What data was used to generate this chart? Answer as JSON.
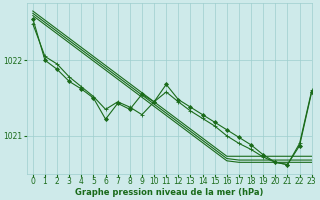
{
  "title": "Graphe pression niveau de la mer (hPa)",
  "background_color": "#ceeaea",
  "grid_color": "#9ecece",
  "line_color": "#1a6b1a",
  "ylim": [
    1020.5,
    1022.75
  ],
  "xlim": [
    -0.5,
    23
  ],
  "yticks": [
    1021,
    1022
  ],
  "xticks": [
    0,
    1,
    2,
    3,
    4,
    5,
    6,
    7,
    8,
    9,
    10,
    11,
    12,
    13,
    14,
    15,
    16,
    17,
    18,
    19,
    20,
    21,
    22,
    23
  ],
  "series": [
    {
      "x": [
        0,
        1,
        2,
        3,
        4,
        5,
        6,
        7,
        8,
        9,
        10,
        11,
        12,
        13,
        14,
        15,
        16,
        17,
        18,
        19,
        20,
        21,
        22,
        23
      ],
      "y": [
        1022.65,
        1022.53,
        1022.41,
        1022.29,
        1022.17,
        1022.05,
        1021.93,
        1021.81,
        1021.69,
        1021.57,
        1021.45,
        1021.33,
        1021.21,
        1021.09,
        1020.97,
        1020.85,
        1020.73,
        1020.73,
        1020.73,
        1020.73,
        1020.73,
        1020.73,
        1020.73,
        1020.73
      ],
      "marker": null,
      "linewidth": 0.8
    },
    {
      "x": [
        0,
        1,
        2,
        3,
        4,
        5,
        6,
        7,
        8,
        9,
        10,
        11,
        12,
        13,
        14,
        15,
        16,
        17,
        18,
        19,
        20,
        21,
        22,
        23
      ],
      "y": [
        1022.62,
        1022.5,
        1022.38,
        1022.26,
        1022.14,
        1022.02,
        1021.9,
        1021.78,
        1021.66,
        1021.54,
        1021.42,
        1021.3,
        1021.18,
        1021.06,
        1020.94,
        1020.82,
        1020.7,
        1020.68,
        1020.68,
        1020.68,
        1020.68,
        1020.68,
        1020.68,
        1020.68
      ],
      "marker": null,
      "linewidth": 0.8
    },
    {
      "x": [
        0,
        1,
        2,
        3,
        4,
        5,
        6,
        7,
        8,
        9,
        10,
        11,
        12,
        13,
        14,
        15,
        16,
        17,
        18,
        19,
        20,
        21,
        22,
        23
      ],
      "y": [
        1022.59,
        1022.47,
        1022.35,
        1022.23,
        1022.11,
        1021.99,
        1021.87,
        1021.75,
        1021.63,
        1021.51,
        1021.39,
        1021.27,
        1021.15,
        1021.03,
        1020.91,
        1020.79,
        1020.67,
        1020.65,
        1020.65,
        1020.65,
        1020.65,
        1020.65,
        1020.65,
        1020.65
      ],
      "marker": null,
      "linewidth": 0.8
    },
    {
      "x": [
        0,
        1,
        2,
        3,
        4,
        5,
        6,
        7,
        8,
        9,
        10,
        11,
        12,
        13,
        14,
        15,
        16,
        17,
        18,
        19,
        20,
        21,
        22,
        23
      ],
      "y": [
        1022.55,
        1022.0,
        1021.88,
        1021.72,
        1021.62,
        1021.5,
        1021.22,
        1021.43,
        1021.35,
        1021.55,
        1021.45,
        1021.68,
        1021.48,
        1021.38,
        1021.28,
        1021.18,
        1021.08,
        1020.98,
        1020.88,
        1020.75,
        1020.65,
        1020.62,
        1020.87,
        1021.58
      ],
      "marker": "D",
      "markersize": 2.0,
      "linewidth": 0.8
    },
    {
      "x": [
        0,
        1,
        2,
        3,
        4,
        5,
        6,
        7,
        8,
        9,
        10,
        11,
        12,
        13,
        14,
        15,
        16,
        17,
        18,
        19,
        20,
        21,
        22,
        23
      ],
      "y": [
        1022.48,
        1022.05,
        1021.95,
        1021.78,
        1021.65,
        1021.52,
        1021.35,
        1021.45,
        1021.38,
        1021.28,
        1021.45,
        1021.58,
        1021.45,
        1021.33,
        1021.23,
        1021.13,
        1021.0,
        1020.9,
        1020.82,
        1020.72,
        1020.65,
        1020.62,
        1020.9,
        1021.6
      ],
      "marker": "+",
      "markersize": 3.0,
      "linewidth": 0.8
    }
  ],
  "tick_fontsize": 5.5,
  "label_fontsize": 6.0,
  "tick_color": "#1a6b1a",
  "label_color": "#1a6b1a"
}
